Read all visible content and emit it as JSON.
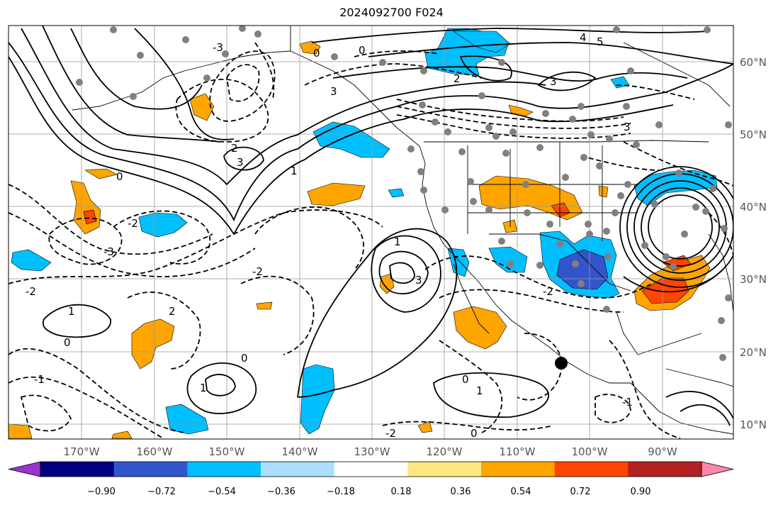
{
  "title": "2024092700 F024",
  "lon_labels": [
    "170°W",
    "160°W",
    "150°W",
    "140°W",
    "130°W",
    "120°W",
    "110°W",
    "100°W",
    "90°W"
  ],
  "lat_labels": [
    "60°N",
    "50°N",
    "40°N",
    "30°N",
    "20°N",
    "10°N"
  ],
  "colorbar": {
    "ticks": [
      "−0.90",
      "−0.72",
      "−0.54",
      "−0.36",
      "−0.18",
      "0.18",
      "0.36",
      "0.54",
      "0.72",
      "0.90"
    ],
    "colors": [
      "#9933cc",
      "#000080",
      "#3355cc",
      "#00bfff",
      "#aadfff",
      "#ffffff",
      "#ffe680",
      "#ffa500",
      "#ff4500",
      "#b22222",
      "#ff88aa"
    ]
  },
  "contour_labels": [
    "0",
    "0",
    "0",
    "0",
    "0",
    "0",
    "0",
    "1",
    "1",
    "1",
    "1",
    "1",
    "2",
    "2",
    "2",
    "3",
    "3",
    "3",
    "3",
    "3",
    "4",
    "5",
    "-1",
    "-1",
    "-2",
    "-2",
    "-2",
    "-2",
    "-2",
    "-3",
    "-3"
  ],
  "fill_colors": {
    "orange": "#ffa500",
    "red": "#ff4500",
    "cyan": "#00bfff",
    "blue": "#3355cc"
  },
  "marker_color": "#808080"
}
